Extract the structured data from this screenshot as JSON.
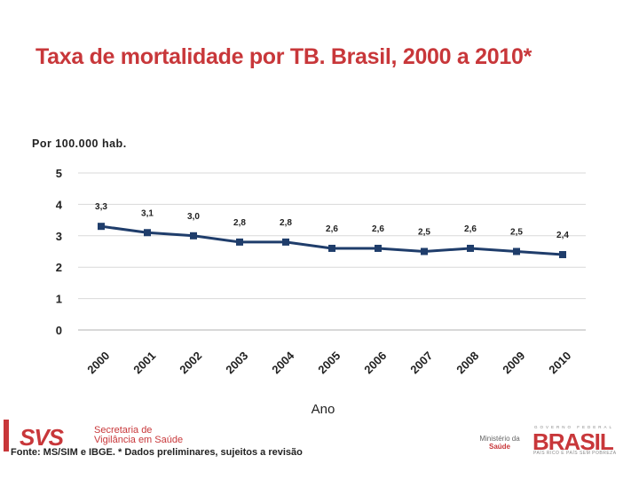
{
  "title": "Taxa de mortalidade por TB. Brasil, 2000 a 2010*",
  "unit_label": "Por 100.000 hab.",
  "footer": {
    "svs_logo": "SVS",
    "svs_line1": "Secretaria de",
    "svs_line2": "Vigilância em Saúde",
    "source": "Fonte: MS/SIM e IBGE. * Dados preliminares, sujeitos a revisão",
    "ministerio": "Ministério da",
    "ministerio_saude": "Saúde",
    "gov_top": "GOVERNO FEDERAL",
    "brasil": "BRASIL",
    "gov_slogan": "PAÍS RICO É PAÍS SEM POBREZA"
  },
  "colors": {
    "title": "#c8373a",
    "series": "#1f3d6b",
    "grid": "#d9d9d9"
  },
  "chart_data": {
    "type": "line",
    "x": [
      "2000",
      "2001",
      "2002",
      "2003",
      "2004",
      "2005",
      "2006",
      "2007",
      "2008",
      "2009",
      "2010"
    ],
    "values": [
      3.3,
      3.1,
      3.0,
      2.8,
      2.8,
      2.6,
      2.6,
      2.5,
      2.6,
      2.5,
      2.4
    ],
    "value_labels": [
      "3,3",
      "3,1",
      "3,0",
      "2,8",
      "2,8",
      "2,6",
      "2,6",
      "2,5",
      "2,6",
      "2,5",
      "2,4"
    ],
    "xlabel": "Ano",
    "ylabel": "Por 100.000 hab.",
    "ylim": [
      0,
      5
    ],
    "yticks": [
      "0",
      "1",
      "2",
      "3",
      "4",
      "5"
    ],
    "grid": true
  }
}
